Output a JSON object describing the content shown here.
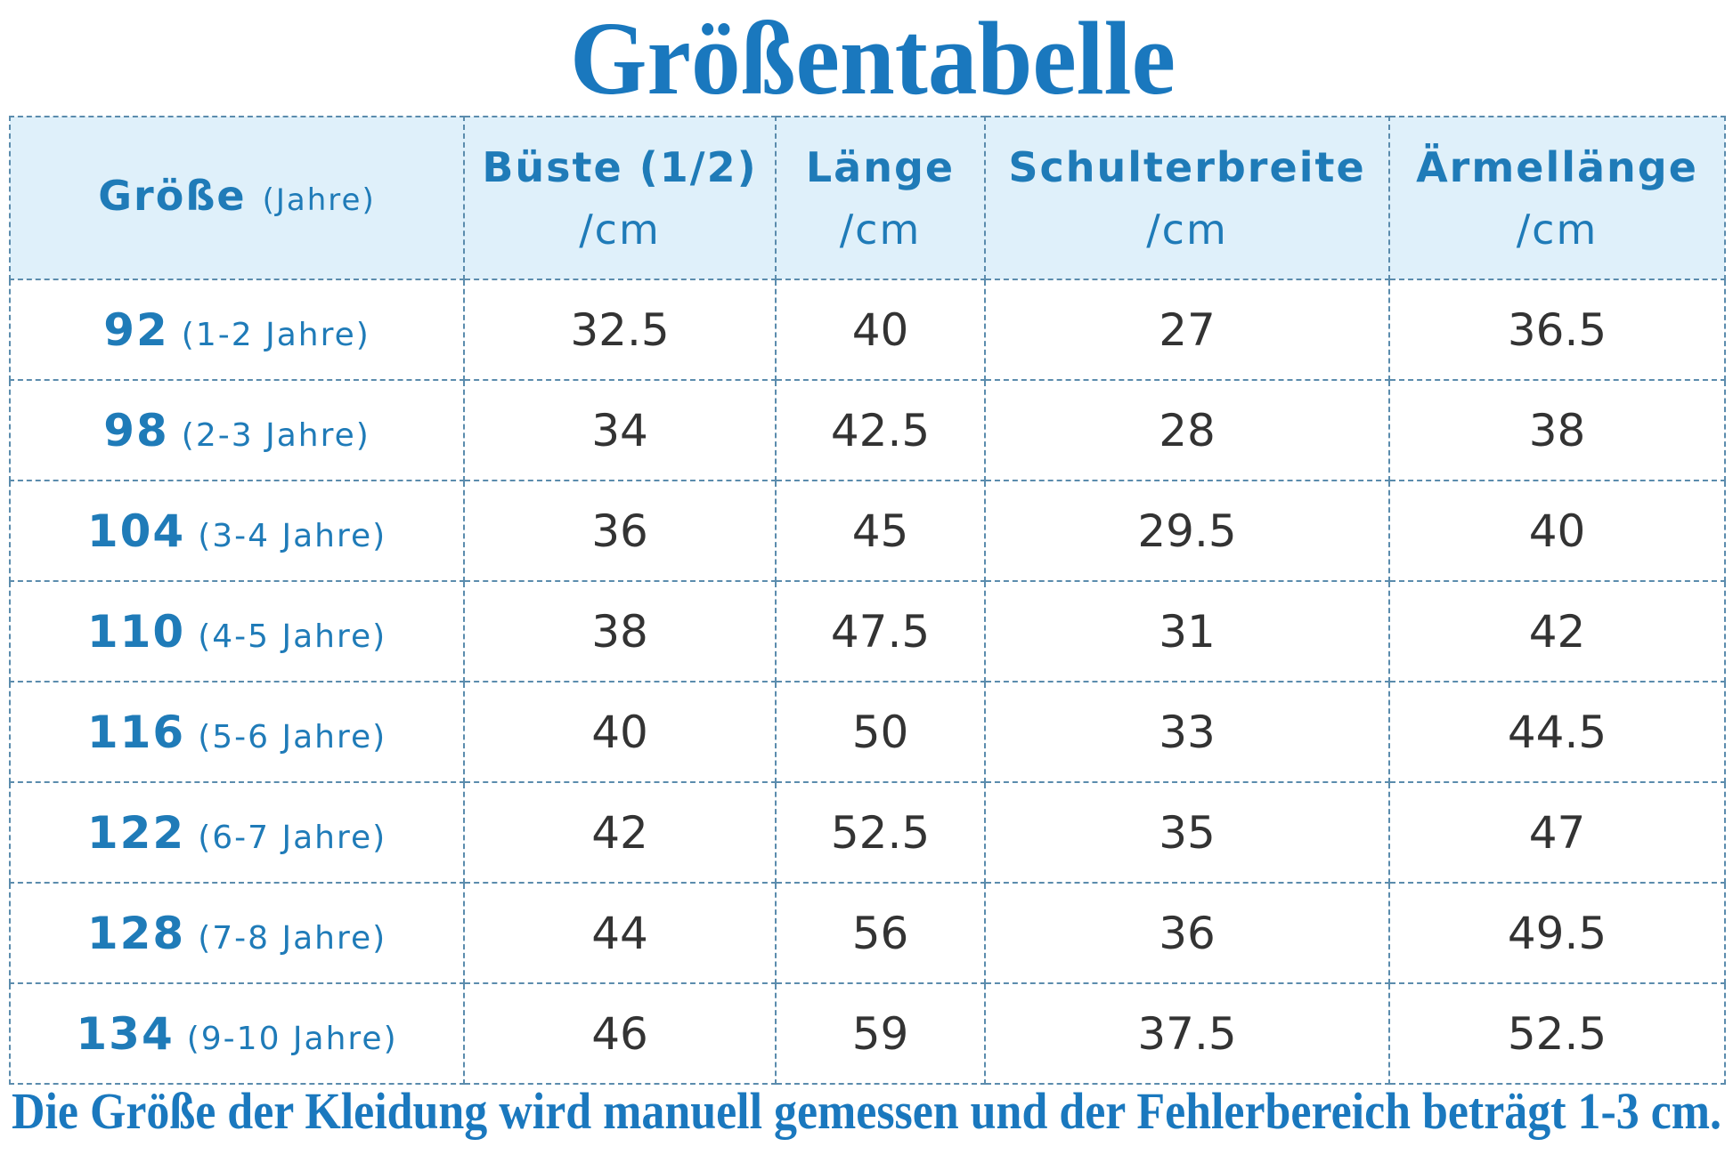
{
  "title": "Größentabelle",
  "table": {
    "headers": [
      {
        "label": "Größe",
        "unit": "(Jahre)"
      },
      {
        "label": "Büste (1/2)",
        "unit": "/cm"
      },
      {
        "label": "Länge",
        "unit": "/cm"
      },
      {
        "label": "Schulterbreite",
        "unit": "/cm"
      },
      {
        "label": "Ärmellänge",
        "unit": "/cm"
      }
    ],
    "rows": [
      {
        "size": 92,
        "age": "(1-2 Jahre)",
        "values": [
          32.5,
          40,
          27,
          36.5
        ]
      },
      {
        "size": 98,
        "age": "(2-3 Jahre)",
        "values": [
          34,
          42.5,
          28,
          38
        ]
      },
      {
        "size": 104,
        "age": "(3-4 Jahre)",
        "values": [
          36,
          45,
          29.5,
          40
        ]
      },
      {
        "size": 110,
        "age": "(4-5 Jahre)",
        "values": [
          38,
          47.5,
          31,
          42
        ]
      },
      {
        "size": 116,
        "age": "(5-6 Jahre)",
        "values": [
          40,
          50,
          33,
          44.5
        ]
      },
      {
        "size": 122,
        "age": "(6-7 Jahre)",
        "values": [
          42,
          52.5,
          35,
          47
        ]
      },
      {
        "size": 128,
        "age": "(7-8 Jahre)",
        "values": [
          44,
          56,
          36,
          49.5
        ]
      },
      {
        "size": 134,
        "age": "(9-10 Jahre)",
        "values": [
          46,
          59,
          37.5,
          52.5
        ]
      }
    ]
  },
  "footer": "Die Größe der Kleidung wird manuell gemessen und der Fehlerbereich beträgt 1-3 cm."
}
